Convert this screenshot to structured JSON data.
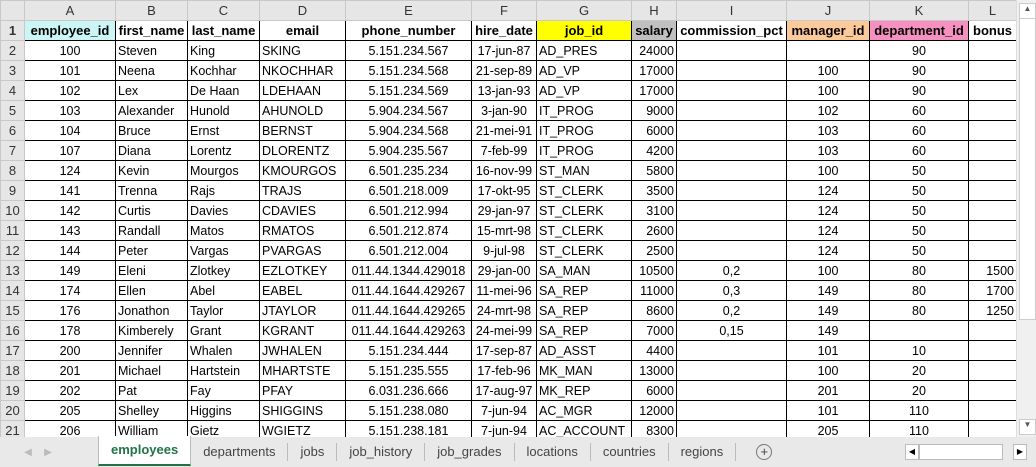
{
  "columns": [
    "A",
    "B",
    "C",
    "D",
    "E",
    "F",
    "G",
    "H",
    "I",
    "J",
    "K",
    "L"
  ],
  "headers": [
    "employee_id",
    "first_name",
    "last_name",
    "email",
    "phone_number",
    "hire_date",
    "job_id",
    "salary",
    "commission_pct",
    "manager_id",
    "department_id",
    "bonus"
  ],
  "header_colors": [
    "#ccf5f5",
    "#ffffff",
    "#ffffff",
    "#ffffff",
    "#ffffff",
    "#ffffff",
    "#ffff00",
    "#c0c0c0",
    "#ffffff",
    "#fcc99a",
    "#f590c0",
    "#ffffff"
  ],
  "rows": [
    [
      "100",
      "Steven",
      "King",
      "SKING",
      "5.151.234.567",
      "17-jun-87",
      "AD_PRES",
      "24000",
      "",
      "",
      "90",
      ""
    ],
    [
      "101",
      "Neena",
      "Kochhar",
      "NKOCHHAR",
      "5.151.234.568",
      "21-sep-89",
      "AD_VP",
      "17000",
      "",
      "100",
      "90",
      ""
    ],
    [
      "102",
      "Lex",
      "De Haan",
      "LDEHAAN",
      "5.151.234.569",
      "13-jan-93",
      "AD_VP",
      "17000",
      "",
      "100",
      "90",
      ""
    ],
    [
      "103",
      "Alexander",
      "Hunold",
      "AHUNOLD",
      "5.904.234.567",
      "3-jan-90",
      "IT_PROG",
      "9000",
      "",
      "102",
      "60",
      ""
    ],
    [
      "104",
      "Bruce",
      "Ernst",
      "BERNST",
      "5.904.234.568",
      "21-mei-91",
      "IT_PROG",
      "6000",
      "",
      "103",
      "60",
      ""
    ],
    [
      "107",
      "Diana",
      "Lorentz",
      "DLORENTZ",
      "5.904.235.567",
      "7-feb-99",
      "IT_PROG",
      "4200",
      "",
      "103",
      "60",
      ""
    ],
    [
      "124",
      "Kevin",
      "Mourgos",
      "KMOURGOS",
      "6.501.235.234",
      "16-nov-99",
      "ST_MAN",
      "5800",
      "",
      "100",
      "50",
      ""
    ],
    [
      "141",
      "Trenna",
      "Rajs",
      "TRAJS",
      "6.501.218.009",
      "17-okt-95",
      "ST_CLERK",
      "3500",
      "",
      "124",
      "50",
      ""
    ],
    [
      "142",
      "Curtis",
      "Davies",
      "CDAVIES",
      "6.501.212.994",
      "29-jan-97",
      "ST_CLERK",
      "3100",
      "",
      "124",
      "50",
      ""
    ],
    [
      "143",
      "Randall",
      "Matos",
      "RMATOS",
      "6.501.212.874",
      "15-mrt-98",
      "ST_CLERK",
      "2600",
      "",
      "124",
      "50",
      ""
    ],
    [
      "144",
      "Peter",
      "Vargas",
      "PVARGAS",
      "6.501.212.004",
      "9-jul-98",
      "ST_CLERK",
      "2500",
      "",
      "124",
      "50",
      ""
    ],
    [
      "149",
      "Eleni",
      "Zlotkey",
      "EZLOTKEY",
      "011.44.1344.429018",
      "29-jan-00",
      "SA_MAN",
      "10500",
      "0,2",
      "100",
      "80",
      "1500"
    ],
    [
      "174",
      "Ellen",
      "Abel",
      "EABEL",
      "011.44.1644.429267",
      "11-mei-96",
      "SA_REP",
      "11000",
      "0,3",
      "149",
      "80",
      "1700"
    ],
    [
      "176",
      "Jonathon",
      "Taylor",
      "JTAYLOR",
      "011.44.1644.429265",
      "24-mrt-98",
      "SA_REP",
      "8600",
      "0,2",
      "149",
      "80",
      "1250"
    ],
    [
      "178",
      "Kimberely",
      "Grant",
      "KGRANT",
      "011.44.1644.429263",
      "24-mei-99",
      "SA_REP",
      "7000",
      "0,15",
      "149",
      "",
      ""
    ],
    [
      "200",
      "Jennifer",
      "Whalen",
      "JWHALEN",
      "5.151.234.444",
      "17-sep-87",
      "AD_ASST",
      "4400",
      "",
      "101",
      "10",
      ""
    ],
    [
      "201",
      "Michael",
      "Hartstein",
      "MHARTSTE",
      "5.151.235.555",
      "17-feb-96",
      "MK_MAN",
      "13000",
      "",
      "100",
      "20",
      ""
    ],
    [
      "202",
      "Pat",
      "Fay",
      "PFAY",
      "6.031.236.666",
      "17-aug-97",
      "MK_REP",
      "6000",
      "",
      "201",
      "20",
      ""
    ],
    [
      "205",
      "Shelley",
      "Higgins",
      "SHIGGINS",
      "5.151.238.080",
      "7-jun-94",
      "AC_MGR",
      "12000",
      "",
      "101",
      "110",
      ""
    ],
    [
      "206",
      "William",
      "Gietz",
      "WGIETZ",
      "5.151.238.181",
      "7-jun-94",
      "AC_ACCOUNT",
      "8300",
      "",
      "205",
      "110",
      ""
    ]
  ],
  "sheet_tabs": [
    "employees",
    "departments",
    "jobs",
    "job_history",
    "job_grades",
    "locations",
    "countries",
    "regions"
  ],
  "active_tab": "employees"
}
